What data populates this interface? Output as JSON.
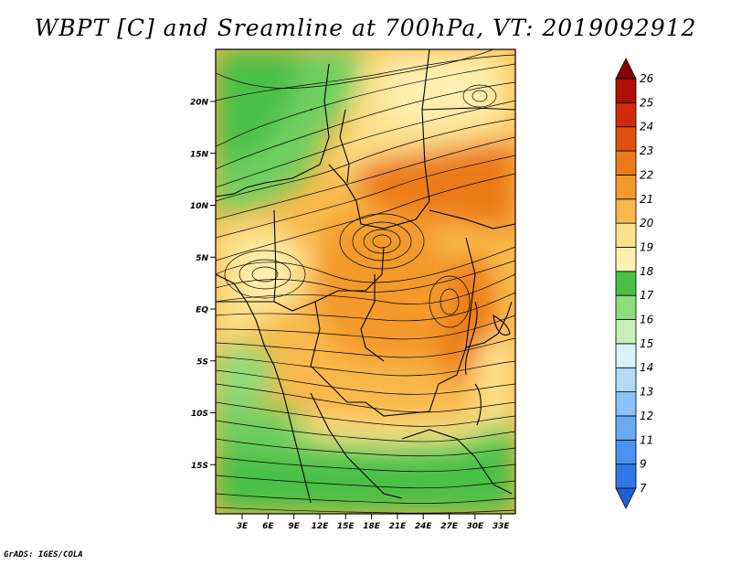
{
  "title": "WBPT [C] and Sreamline at 700hPa, VT: 2019092912",
  "credit": "GrADS: IGES/COLA",
  "map": {
    "lat_labels": [
      "20N",
      "15N",
      "10N",
      "5N",
      "EQ",
      "5S",
      "10S",
      "15S"
    ],
    "lon_labels": [
      "3E",
      "6E",
      "9E",
      "12E",
      "15E",
      "18E",
      "21E",
      "24E",
      "27E",
      "30E",
      "33E"
    ],
    "lat_values": [
      20,
      15,
      10,
      5,
      0,
      -5,
      -10,
      -15
    ],
    "lon_values": [
      3,
      6,
      9,
      12,
      15,
      18,
      21,
      24,
      27,
      30,
      33
    ]
  },
  "legend": {
    "levels": [
      "7",
      "9",
      "11",
      "12",
      "13",
      "14",
      "15",
      "16",
      "17",
      "18",
      "19",
      "20",
      "21",
      "22",
      "23",
      "24",
      "25",
      "26"
    ],
    "colors": [
      "#1f5fd6",
      "#2f78e6",
      "#4a92f0",
      "#6aaaf3",
      "#8cc2f6",
      "#b2daf9",
      "#dcf2fb",
      "#c6f0b8",
      "#8edc7c",
      "#48c046",
      "#fff0b0",
      "#fde08a",
      "#f8b84c",
      "#f39a2c",
      "#ec7a18",
      "#e1500e",
      "#d02a08",
      "#b00f05",
      "#8a0000"
    ]
  }
}
